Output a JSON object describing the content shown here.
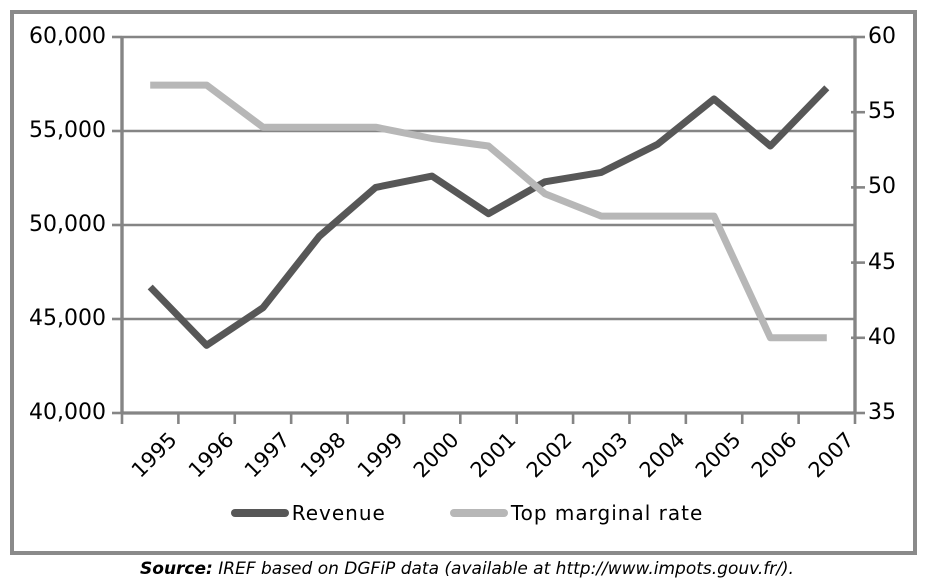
{
  "legend": {
    "revenue_label": "Revenue",
    "rate_label": "Top marginal rate"
  },
  "source": {
    "prefix": "Source:",
    "rest": " IREF based on DGFiP data (available at http://www.impots.gouv.fr/)."
  },
  "colors": {
    "series_dark": "#575757",
    "series_light": "#b7b7b7",
    "grid": "#858585",
    "axis": "#858585",
    "border": "#8a8a8a",
    "text": "#000000"
  },
  "chart_data": {
    "type": "line",
    "categories": [
      "1995",
      "1996",
      "1997",
      "1998",
      "1999",
      "2000",
      "2001",
      "2002",
      "2003",
      "2004",
      "2005",
      "2006",
      "2007"
    ],
    "series": [
      {
        "name": "Revenue",
        "axis": "left",
        "color": "#575757",
        "values": [
          46700,
          43600,
          45600,
          49400,
          52000,
          52600,
          50600,
          52300,
          52800,
          54300,
          56700,
          54200,
          57300
        ]
      },
      {
        "name": "Top marginal rate",
        "axis": "right",
        "color": "#b7b7b7",
        "values": [
          56.8,
          56.8,
          54,
          54,
          54,
          53.25,
          52.75,
          49.58,
          48.09,
          48.09,
          48.09,
          40,
          40
        ]
      }
    ],
    "left_axis": {
      "min": 40000,
      "max": 60000,
      "tick_labels": [
        "60,000",
        "55,000",
        "50,000",
        "45,000",
        "40,000"
      ],
      "tick_values": [
        60000,
        55000,
        50000,
        45000,
        40000
      ]
    },
    "right_axis": {
      "min": 35,
      "max": 60,
      "tick_labels": [
        "60",
        "55",
        "50",
        "45",
        "40",
        "35"
      ],
      "tick_values": [
        60,
        55,
        50,
        45,
        40,
        35
      ]
    },
    "title": "",
    "xlabel": "",
    "ylabel": "",
    "grid": true,
    "legend_position": "bottom"
  }
}
